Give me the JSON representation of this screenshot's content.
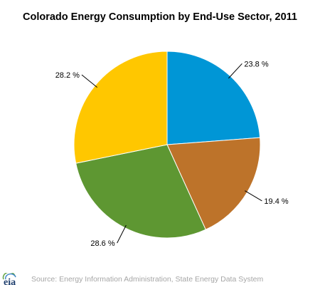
{
  "chart_data": {
    "type": "pie",
    "title": "Colorado Energy Consumption by End-Use Sector, 2011",
    "start_angle_deg": 0,
    "direction": "clockwise",
    "slices": [
      {
        "value": 23.8,
        "label": "23.8 %",
        "color": "#0096D6"
      },
      {
        "value": 19.4,
        "label": "19.4 %",
        "color": "#BD732A"
      },
      {
        "value": 28.6,
        "label": "28.6 %",
        "color": "#5E9732"
      },
      {
        "value": 28.2,
        "label": "28.2 %",
        "color": "#FFC700"
      }
    ],
    "legend": "none"
  },
  "footer": {
    "logo_text": "eia",
    "source": "Source: Energy Information Administration, State Energy Data System"
  }
}
